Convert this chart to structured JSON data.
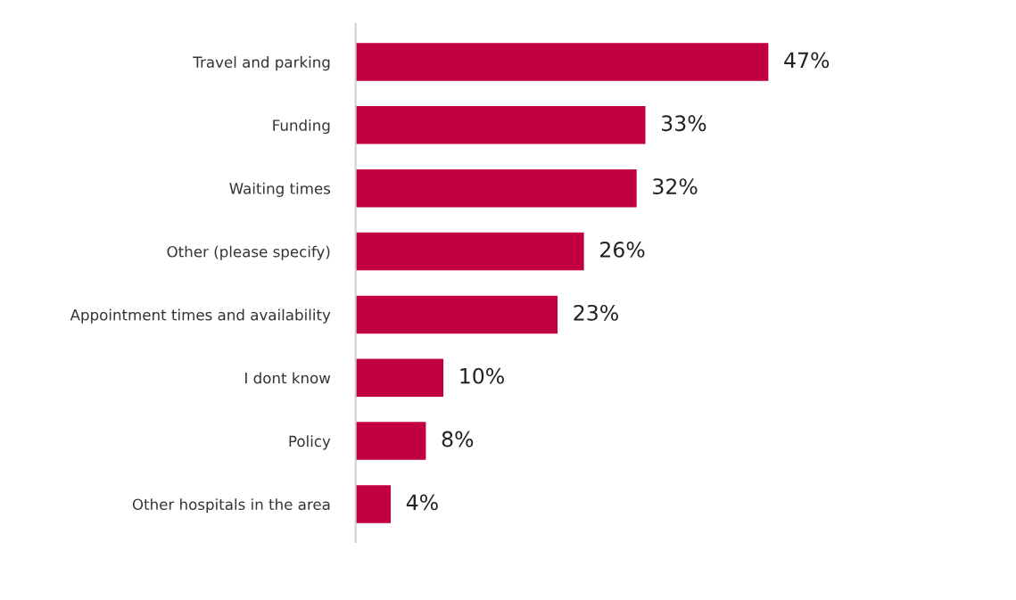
{
  "chart_data": {
    "type": "bar",
    "orientation": "horizontal",
    "categories": [
      "Travel and parking",
      "Funding",
      "Waiting times",
      "Other (please specify)",
      "Appointment times and availability",
      "I dont know",
      "Policy",
      "Other hospitals in the area"
    ],
    "values": [
      47,
      33,
      32,
      26,
      23,
      10,
      8,
      4
    ],
    "value_labels": [
      "47%",
      "33%",
      "32%",
      "26%",
      "23%",
      "10%",
      "8%",
      "4%"
    ],
    "color": "#c3003f",
    "grid": false
  }
}
